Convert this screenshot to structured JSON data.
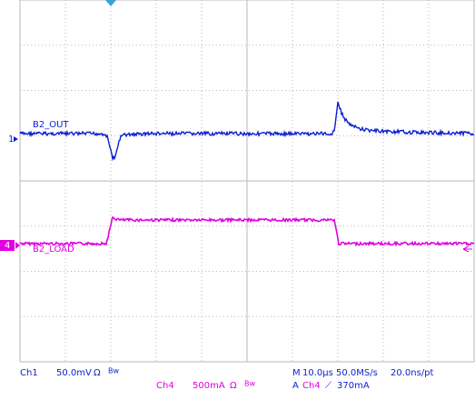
{
  "channels": [
    {
      "marker": "1",
      "label": "B2_OUT",
      "name": "Ch1",
      "scale": "50.0mV",
      "impedance": "Ω",
      "bandwidth": "Bw"
    },
    {
      "marker": "4",
      "label": "B2_LOAD",
      "name": "Ch4",
      "scale": "500mA",
      "impedance": "Ω",
      "bandwidth": "Bw"
    }
  ],
  "timebase": {
    "prefix": "M",
    "horizontal": "10.0µs",
    "sample_rate": "50.0MS/s",
    "resolution": "20.0ns/pt"
  },
  "trigger": {
    "prefix": "A",
    "source": "Ch4",
    "slope": "⟋",
    "level": "370mA"
  }
}
